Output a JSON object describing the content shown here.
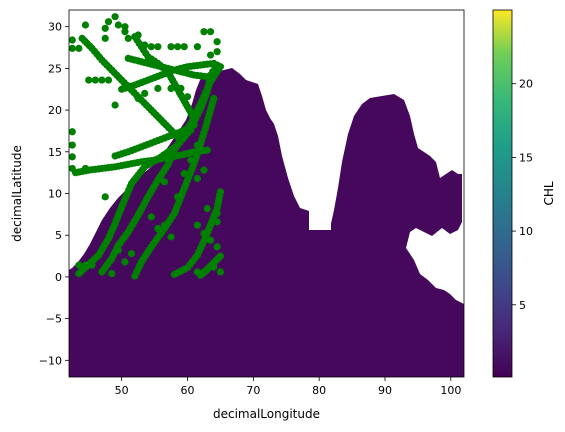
{
  "chart_data": {
    "type": "scatter",
    "title": "",
    "xlabel": "decimalLongitude",
    "ylabel": "decimalLatitude",
    "xlim": [
      42,
      102
    ],
    "ylim": [
      -12,
      32
    ],
    "xticks": [
      50,
      60,
      70,
      80,
      90,
      100
    ],
    "yticks": [
      -10,
      -5,
      0,
      5,
      10,
      15,
      20,
      25,
      30
    ],
    "grid": false,
    "legend": "none",
    "background_layer": {
      "kind": "gridded raster",
      "variable": "CHL",
      "dominant_value_approx": 0.5,
      "colormap": "viridis"
    },
    "colorbar": {
      "label": "CHL",
      "range": [
        0.1,
        25
      ],
      "ticks": [
        5,
        10,
        15,
        20
      ]
    },
    "series": [
      {
        "color": "#008000",
        "tracks": [
          [
            [
              43.5,
              0.4
            ],
            [
              45,
              1.5
            ],
            [
              46.5,
              2.6
            ],
            [
              48,
              4.6
            ],
            [
              49,
              6.4
            ],
            [
              50,
              8.4
            ],
            [
              51.5,
              11.2
            ],
            [
              53.5,
              13.2
            ],
            [
              56,
              14.4
            ],
            [
              58.5,
              15.8
            ],
            [
              60,
              17.2
            ],
            [
              61,
              18.6
            ],
            [
              62,
              20.2
            ],
            [
              63,
              22.2
            ],
            [
              63.5,
              24.2
            ],
            [
              64.5,
              25.4
            ]
          ],
          [
            [
              47,
              0.6
            ],
            [
              48.5,
              2.2
            ],
            [
              49.5,
              3.8
            ],
            [
              51,
              5.4
            ],
            [
              52.5,
              7.4
            ],
            [
              54,
              9.6
            ],
            [
              55.5,
              11.6
            ],
            [
              57,
              13.4
            ],
            [
              58,
              15.2
            ],
            [
              59,
              16.6
            ],
            [
              60.5,
              18.4
            ],
            [
              62,
              20.8
            ],
            [
              63.5,
              23.4
            ],
            [
              65,
              25.2
            ]
          ],
          [
            [
              52,
              0.1
            ],
            [
              53,
              1.8
            ],
            [
              54.5,
              3.6
            ],
            [
              56.5,
              5.8
            ],
            [
              58,
              7.6
            ],
            [
              59,
              9.6
            ],
            [
              60,
              11.6
            ],
            [
              61,
              13.6
            ],
            [
              62,
              16
            ],
            [
              63,
              18.6
            ],
            [
              64,
              21.4
            ]
          ],
          [
            [
              58,
              0.3
            ],
            [
              60,
              1.1
            ],
            [
              61.5,
              2.6
            ],
            [
              62.5,
              4.3
            ],
            [
              63.5,
              6.2
            ],
            [
              64.5,
              8.2
            ],
            [
              65,
              10.2
            ]
          ],
          [
            [
              62,
              0.2
            ],
            [
              63,
              0.9
            ],
            [
              64,
              1.7
            ],
            [
              65,
              2.5
            ]
          ],
          [
            [
              43,
              12.5
            ],
            [
              45,
              12.8
            ],
            [
              47,
              13
            ],
            [
              49,
              13.2
            ],
            [
              51,
              13.5
            ],
            [
              53,
              13.8
            ],
            [
              55,
              14
            ],
            [
              57,
              14.3
            ],
            [
              59,
              14.6
            ],
            [
              61,
              15
            ],
            [
              63,
              15.2
            ]
          ],
          [
            [
              49,
              14.5
            ],
            [
              51,
              15
            ],
            [
              53,
              15.6
            ],
            [
              55,
              16.2
            ],
            [
              57,
              16.8
            ],
            [
              59,
              17.4
            ],
            [
              61,
              18.2
            ]
          ],
          [
            [
              50,
              22.5
            ],
            [
              52,
              23
            ],
            [
              54,
              23.6
            ],
            [
              56,
              24.2
            ],
            [
              58,
              24.8
            ],
            [
              60,
              25.2
            ],
            [
              62,
              25.4
            ],
            [
              64,
              25.6
            ]
          ],
          [
            [
              51,
              26.2
            ],
            [
              53,
              25.8
            ],
            [
              55,
              25.4
            ],
            [
              57,
              25
            ],
            [
              59,
              24.6
            ],
            [
              61,
              24.2
            ],
            [
              63,
              24
            ]
          ],
          [
            [
              52,
              28.8
            ],
            [
              53,
              27.6
            ],
            [
              54,
              26.4
            ],
            [
              55.5,
              25.6
            ],
            [
              57,
              24.6
            ],
            [
              58,
              23.2
            ],
            [
              59,
              21.8
            ],
            [
              60,
              20.4
            ],
            [
              61,
              19
            ]
          ],
          [
            [
              44,
              28.6
            ],
            [
              45.5,
              27.4
            ],
            [
              47,
              26
            ],
            [
              48.5,
              24.8
            ],
            [
              50,
              23.6
            ],
            [
              51.5,
              22.4
            ],
            [
              53,
              21.2
            ],
            [
              54.5,
              20
            ],
            [
              56,
              18.8
            ],
            [
              57.5,
              17.6
            ],
            [
              59,
              16.4
            ]
          ]
        ],
        "points": [
          [
            44.5,
            30.2
          ],
          [
            42.5,
            28.4
          ],
          [
            42.5,
            27.4
          ],
          [
            43.5,
            27.4
          ],
          [
            47.5,
            28.6
          ],
          [
            47.5,
            29.8
          ],
          [
            48,
            30.6
          ],
          [
            49,
            31.2
          ],
          [
            49.5,
            30.2
          ],
          [
            50.5,
            30
          ],
          [
            51,
            28.6
          ],
          [
            50.5,
            29.4
          ],
          [
            52.5,
            29
          ],
          [
            53.5,
            27.8
          ],
          [
            54.5,
            27.6
          ],
          [
            55.5,
            27.6
          ],
          [
            57.5,
            27.6
          ],
          [
            58.5,
            27.6
          ],
          [
            59.5,
            27.6
          ],
          [
            61.5,
            27.6
          ],
          [
            62.5,
            29.4
          ],
          [
            63.5,
            29.4
          ],
          [
            64.5,
            28.2
          ],
          [
            64.5,
            27
          ],
          [
            63.5,
            26.6
          ],
          [
            45,
            23.6
          ],
          [
            46,
            23.6
          ],
          [
            47,
            23.6
          ],
          [
            48,
            23.6
          ],
          [
            49,
            20.6
          ],
          [
            44.5,
            13
          ],
          [
            42.5,
            13
          ],
          [
            42.5,
            14.4
          ],
          [
            42.5,
            15.8
          ],
          [
            42.5,
            17.4
          ],
          [
            47.5,
            9.6
          ],
          [
            43.5,
            1.4
          ],
          [
            44.5,
            1.4
          ],
          [
            45.5,
            1.4
          ],
          [
            48.5,
            0.4
          ],
          [
            50.5,
            1.8
          ],
          [
            51.5,
            2.8
          ],
          [
            49.5,
            3.2
          ],
          [
            61.5,
            0.6
          ],
          [
            62.5,
            0.6
          ],
          [
            65,
            0.6
          ],
          [
            64,
            1.2
          ],
          [
            63,
            8.2
          ],
          [
            64.5,
            7.6
          ],
          [
            64.5,
            6.6
          ],
          [
            61.5,
            6.2
          ],
          [
            62.5,
            5.2
          ],
          [
            63.5,
            4.4
          ],
          [
            64.5,
            3.6
          ],
          [
            57.5,
            4.8
          ],
          [
            55.5,
            5.8
          ],
          [
            54.5,
            7.2
          ],
          [
            56.5,
            6.2
          ],
          [
            58.5,
            9.6
          ],
          [
            61.5,
            11.8
          ],
          [
            59.5,
            12.4
          ],
          [
            56.5,
            11.4
          ],
          [
            60.5,
            14
          ],
          [
            62.5,
            12.8
          ],
          [
            61.5,
            15.8
          ],
          [
            60.5,
            17.6
          ],
          [
            61.5,
            19.6
          ],
          [
            60,
            21.6
          ],
          [
            59,
            22.6
          ],
          [
            57.5,
            22.6
          ],
          [
            55.5,
            22.6
          ],
          [
            53.5,
            22
          ],
          [
            52.5,
            21.4
          ]
        ]
      }
    ]
  }
}
